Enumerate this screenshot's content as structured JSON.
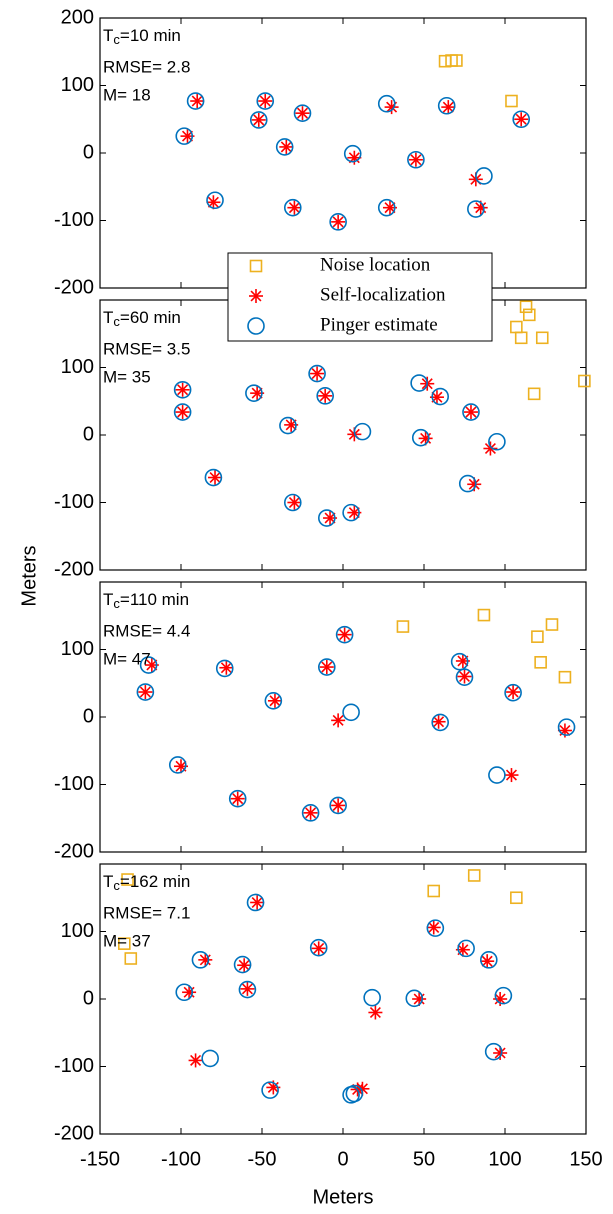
{
  "chart_data": [
    {
      "type": "scatter",
      "annotation": {
        "t_symbol": "T",
        "t_sub": "c",
        "t_rest": "=10 min",
        "rmse": "RMSE= 2.8",
        "m": "M= 18"
      },
      "ylabel": "Meters",
      "xlim": [
        -150,
        150
      ],
      "xticks": [
        -150,
        -100,
        -50,
        0,
        50,
        100,
        150
      ],
      "ylim": [
        -200,
        200
      ],
      "yticks": [
        -200,
        -100,
        0,
        100,
        200
      ],
      "series": [
        {
          "name": "Noise location",
          "color": "#edb120",
          "marker": "square",
          "x": [
            63,
            67,
            70,
            104
          ],
          "values": [
            136,
            137,
            137,
            77
          ]
        },
        {
          "name": "Self-localization",
          "color": "#ff0000",
          "marker": "star",
          "x": [
            -96,
            -90,
            -48,
            -52,
            -25,
            -35,
            -80,
            -30,
            -3,
            7,
            30,
            29,
            45,
            65,
            110,
            82,
            85
          ],
          "values": [
            25,
            77,
            77,
            49,
            59,
            9,
            -73,
            -81,
            -102,
            -7,
            68,
            -81,
            -10,
            68,
            50,
            -39,
            -81
          ]
        },
        {
          "name": "Pinger estimate",
          "color": "#0072bd",
          "marker": "circle",
          "x": [
            -98,
            -91,
            -48,
            -52,
            -25,
            -36,
            -79,
            -31,
            -3,
            6,
            27,
            27,
            45,
            64,
            110,
            87,
            82
          ],
          "values": [
            25,
            77,
            77,
            49,
            59,
            9,
            -70,
            -81,
            -102,
            -1,
            73,
            -81,
            -10,
            70,
            50,
            -34,
            -83
          ]
        }
      ]
    },
    {
      "type": "scatter",
      "annotation": {
        "t_symbol": "T",
        "t_sub": "c",
        "t_rest": "=60 min",
        "rmse": "RMSE= 3.5",
        "m": "M= 35"
      },
      "xlim": [
        -150,
        150
      ],
      "xticks": [
        -150,
        -100,
        -50,
        0,
        50,
        100,
        150
      ],
      "ylim": [
        -200,
        200
      ],
      "yticks": [
        -200,
        -100,
        0,
        100
      ],
      "series": [
        {
          "name": "Noise location",
          "color": "#edb120",
          "marker": "square",
          "x": [
            113,
            115,
            107,
            110,
            123,
            149,
            118
          ],
          "values": [
            190,
            178,
            160,
            144,
            144,
            80,
            61
          ]
        },
        {
          "name": "Self-localization",
          "color": "#ff0000",
          "marker": "star",
          "x": [
            -99,
            -99,
            -53,
            -32,
            -16,
            -11,
            7,
            -30,
            -8,
            7,
            52,
            58,
            51,
            79,
            91,
            81,
            -79
          ],
          "values": [
            67,
            34,
            62,
            15,
            91,
            58,
            1,
            -100,
            -123,
            -115,
            76,
            56,
            -5,
            34,
            -20,
            -73,
            -63
          ]
        },
        {
          "name": "Pinger estimate",
          "color": "#0072bd",
          "marker": "circle",
          "x": [
            -99,
            -99,
            -55,
            -34,
            -16,
            -11,
            12,
            -31,
            -10,
            5,
            47,
            60,
            48,
            79,
            95,
            77,
            -80
          ],
          "values": [
            67,
            34,
            62,
            14,
            91,
            58,
            5,
            -100,
            -123,
            -115,
            77,
            57,
            -4,
            34,
            -10,
            -72,
            -63
          ]
        }
      ]
    },
    {
      "type": "scatter",
      "annotation": {
        "t_symbol": "T",
        "t_sub": "c",
        "t_rest": "=110 min",
        "rmse": "RMSE= 4.4",
        "m": "M= 47"
      },
      "xlim": [
        -150,
        150
      ],
      "xticks": [
        -150,
        -100,
        -50,
        0,
        50,
        100,
        150
      ],
      "ylim": [
        -200,
        200
      ],
      "yticks": [
        -200,
        -100,
        0,
        100
      ],
      "series": [
        {
          "name": "Noise location",
          "color": "#edb120",
          "marker": "square",
          "x": [
            37,
            87,
            120,
            129,
            122,
            137
          ],
          "values": [
            134,
            151,
            119,
            137,
            81,
            59
          ]
        },
        {
          "name": "Self-localization",
          "color": "#ff0000",
          "marker": "star",
          "x": [
            -118,
            -122,
            -72,
            -100,
            -65,
            -42,
            -10,
            1,
            -3,
            -20,
            -3,
            74,
            75,
            59,
            105,
            104,
            137
          ],
          "values": [
            77,
            37,
            73,
            -73,
            -121,
            24,
            74,
            122,
            -5,
            -142,
            -131,
            83,
            60,
            -7,
            37,
            -86,
            -20
          ]
        },
        {
          "name": "Pinger estimate",
          "color": "#0072bd",
          "marker": "circle",
          "x": [
            -120,
            -122,
            -73,
            -102,
            -65,
            -43,
            -10,
            1,
            5,
            -20,
            -3,
            72,
            75,
            60,
            105,
            95,
            138
          ],
          "values": [
            77,
            37,
            72,
            -71,
            -121,
            24,
            74,
            122,
            7,
            -142,
            -131,
            82,
            59,
            -8,
            36,
            -86,
            -15
          ]
        }
      ]
    },
    {
      "type": "scatter",
      "annotation": {
        "t_symbol": "T",
        "t_sub": "c",
        "t_rest": "=162 min",
        "rmse": "RMSE= 7.1",
        "m": "M= 37"
      },
      "xlabel": "Meters",
      "xlim": [
        -150,
        150
      ],
      "xticks": [
        -150,
        -100,
        -50,
        0,
        50,
        100,
        150
      ],
      "ylim": [
        -200,
        200
      ],
      "yticks": [
        -200,
        -100,
        0,
        100
      ],
      "series": [
        {
          "name": "Noise location",
          "color": "#edb120",
          "marker": "square",
          "x": [
            -133,
            -135,
            -131,
            56,
            81,
            107
          ],
          "values": [
            177,
            82,
            60,
            160,
            183,
            150
          ]
        },
        {
          "name": "Self-localization",
          "color": "#ff0000",
          "marker": "star",
          "x": [
            -53,
            -85,
            -95,
            -61,
            -59,
            -15,
            20,
            47,
            56,
            74,
            89,
            97,
            97,
            -91,
            -43,
            9,
            12
          ],
          "values": [
            143,
            58,
            10,
            50,
            15,
            75,
            -20,
            0,
            106,
            73,
            56,
            0,
            -80,
            -91,
            -131,
            -134,
            -133
          ]
        },
        {
          "name": "Pinger estimate",
          "color": "#0072bd",
          "marker": "circle",
          "x": [
            -54,
            -88,
            -98,
            -62,
            -59,
            -15,
            18,
            44,
            57,
            76,
            90,
            99,
            93,
            -82,
            -45,
            5,
            7
          ],
          "values": [
            143,
            58,
            10,
            51,
            14,
            76,
            2,
            1,
            105,
            75,
            58,
            5,
            -78,
            -88,
            -135,
            -142,
            -140
          ]
        }
      ]
    }
  ]
}
